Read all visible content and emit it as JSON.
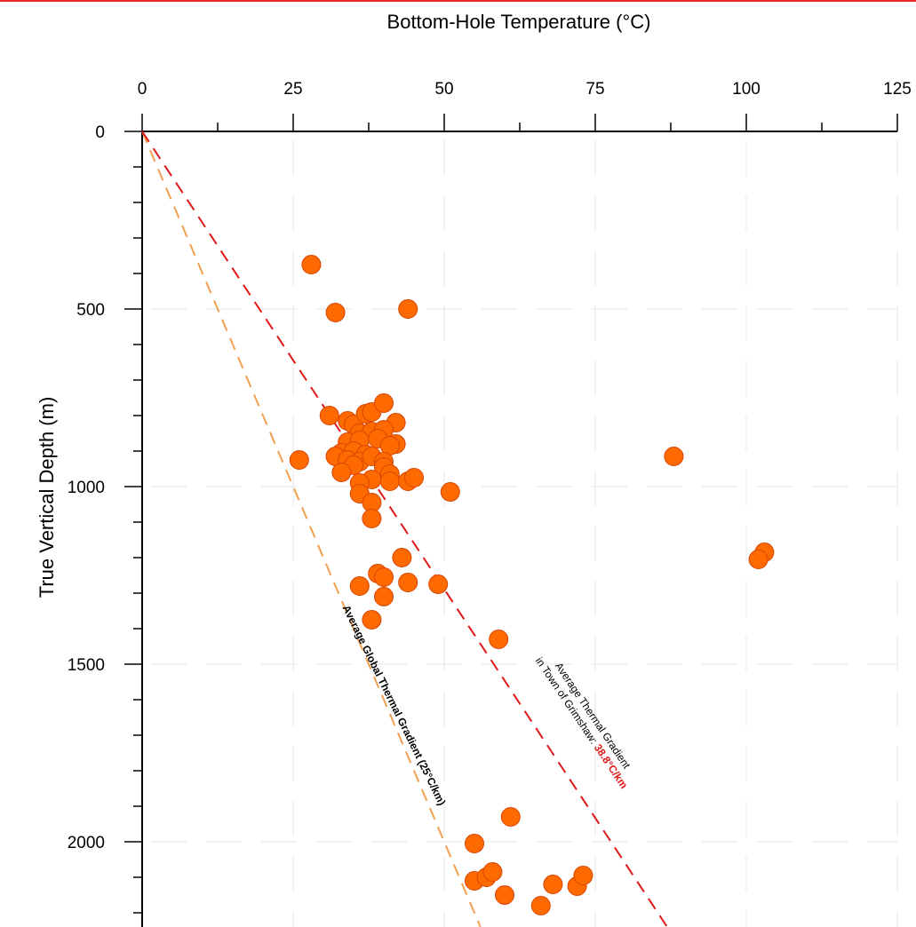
{
  "chart_data": {
    "type": "scatter",
    "xlabel": "Bottom-Hole Temperature (°C)",
    "ylabel": "True Vertical Depth (m)",
    "x_ticks": [
      0,
      25,
      50,
      75,
      100,
      125
    ],
    "y_ticks": [
      0,
      500,
      1000,
      1500,
      2000
    ],
    "xlim": [
      0,
      125
    ],
    "ylim": [
      2250,
      0
    ],
    "x_axis_position": "top",
    "grid": true,
    "marker_color": "#ff6a00",
    "marker_edge_color": "#d84400",
    "points": [
      {
        "x": 28,
        "y": 375
      },
      {
        "x": 32,
        "y": 510
      },
      {
        "x": 44,
        "y": 500
      },
      {
        "x": 31,
        "y": 800
      },
      {
        "x": 34,
        "y": 815
      },
      {
        "x": 35,
        "y": 825
      },
      {
        "x": 37,
        "y": 795
      },
      {
        "x": 38,
        "y": 790
      },
      {
        "x": 40,
        "y": 765
      },
      {
        "x": 42,
        "y": 820
      },
      {
        "x": 36,
        "y": 850
      },
      {
        "x": 38,
        "y": 845
      },
      {
        "x": 40,
        "y": 840
      },
      {
        "x": 34,
        "y": 875
      },
      {
        "x": 36,
        "y": 870
      },
      {
        "x": 39,
        "y": 865
      },
      {
        "x": 42,
        "y": 880
      },
      {
        "x": 41,
        "y": 885
      },
      {
        "x": 33,
        "y": 905
      },
      {
        "x": 35,
        "y": 900
      },
      {
        "x": 37,
        "y": 910
      },
      {
        "x": 32,
        "y": 915
      },
      {
        "x": 26,
        "y": 925
      },
      {
        "x": 34,
        "y": 925
      },
      {
        "x": 36,
        "y": 930
      },
      {
        "x": 38,
        "y": 915
      },
      {
        "x": 40,
        "y": 930
      },
      {
        "x": 35,
        "y": 940
      },
      {
        "x": 40,
        "y": 945
      },
      {
        "x": 33,
        "y": 960
      },
      {
        "x": 41,
        "y": 965
      },
      {
        "x": 38,
        "y": 980
      },
      {
        "x": 36,
        "y": 990
      },
      {
        "x": 41,
        "y": 985
      },
      {
        "x": 44,
        "y": 985
      },
      {
        "x": 45,
        "y": 975
      },
      {
        "x": 36,
        "y": 1020
      },
      {
        "x": 38,
        "y": 1045
      },
      {
        "x": 38,
        "y": 1090
      },
      {
        "x": 51,
        "y": 1015
      },
      {
        "x": 88,
        "y": 915
      },
      {
        "x": 103,
        "y": 1185
      },
      {
        "x": 102,
        "y": 1205
      },
      {
        "x": 43,
        "y": 1200
      },
      {
        "x": 39,
        "y": 1245
      },
      {
        "x": 40,
        "y": 1255
      },
      {
        "x": 36,
        "y": 1280
      },
      {
        "x": 44,
        "y": 1270
      },
      {
        "x": 49,
        "y": 1275
      },
      {
        "x": 40,
        "y": 1310
      },
      {
        "x": 38,
        "y": 1375
      },
      {
        "x": 59,
        "y": 1430
      },
      {
        "x": 61,
        "y": 1930
      },
      {
        "x": 55,
        "y": 2005
      },
      {
        "x": 55,
        "y": 2110
      },
      {
        "x": 57,
        "y": 2100
      },
      {
        "x": 58,
        "y": 2085
      },
      {
        "x": 60,
        "y": 2150
      },
      {
        "x": 66,
        "y": 2180
      },
      {
        "x": 68,
        "y": 2120
      },
      {
        "x": 72,
        "y": 2125
      },
      {
        "x": 73,
        "y": 2095
      }
    ],
    "lines": [
      {
        "gradient_c_per_km": 25,
        "color": "#f0a050",
        "style": "dashed"
      },
      {
        "gradient_c_per_km": 38.8,
        "color": "#e01818",
        "style": "dashed"
      }
    ],
    "annotations": {
      "global": "Average Global Thermal Gradient (25°C/km)",
      "local_line1": "Average Thermal Gradient",
      "local_line2_prefix": "in Town of Grimshaw: ",
      "local_value": "38.8°C/km",
      "local_value_color": "#e01818"
    }
  }
}
